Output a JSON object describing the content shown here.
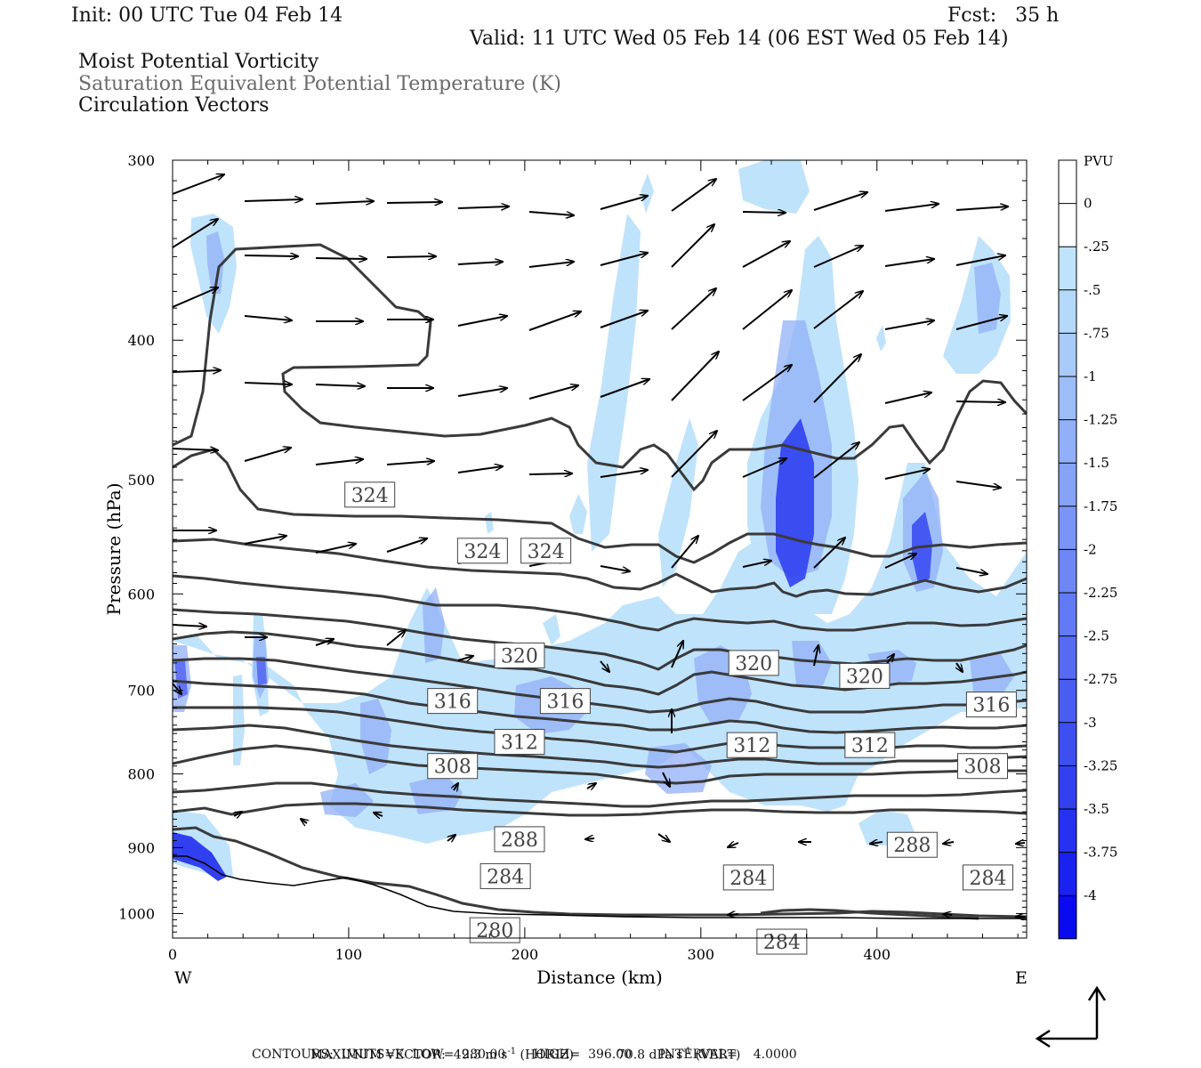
{
  "header": {
    "init": "Init: 00 UTC Tue 04 Feb 14",
    "fcst": "Fcst:   35 h",
    "valid": "Valid: 11 UTC Wed 05 Feb 14 (06 EST Wed 05 Feb 14)",
    "line1": "Moist Potential Vorticity",
    "line2": "Saturation Equivalent Potential Temperature (K)",
    "line3": "Circulation Vectors"
  },
  "footer": {
    "max_vector": "MAXIMUM VECTOR:  49.3 m s",
    "max_vector_h": "(HORIZ)",
    "max_vector_v": "70.8 dPa s",
    "max_vector_v2": "(VERT)",
    "sup": "-1",
    "contours": "CONTOURS:  UNITS=K  LOW=  280.00       HIGH=  396.00       INTERVAL=    4.0000"
  },
  "colors": {
    "contour": "#3a3a3a",
    "pv_light": "#bfe3fb",
    "pv_mid": "#7f9ff5",
    "pv_dark": "#1010f0"
  },
  "chart_data": {
    "type": "cross-section",
    "xlabel": "Distance (km)",
    "ylabel": "Pressure (hPa)",
    "x_end_left": "W",
    "x_end_right": "E",
    "xlim": [
      0,
      485
    ],
    "ylim": [
      300,
      1040
    ],
    "y_log_scale": true,
    "xticks": [
      0,
      100,
      200,
      300,
      400
    ],
    "yticks": [
      300,
      400,
      500,
      600,
      700,
      800,
      900,
      1000
    ],
    "colorbar": {
      "unit": "PVU",
      "levels": [
        "0",
        "-.25",
        "-.5",
        "-.75",
        "-1",
        "-1.25",
        "-1.5",
        "-1.75",
        "-2",
        "-2.25",
        "-2.5",
        "-2.75",
        "-3",
        "-3.25",
        "-3.5",
        "-3.75",
        "-4"
      ],
      "colors": [
        "#ffffff",
        "#ffffff",
        "#bfe3fb",
        "#b5d9fb",
        "#a9cbf9",
        "#9dbdf8",
        "#92b0f7",
        "#86a3f6",
        "#7a95f5",
        "#6f87f4",
        "#627af3",
        "#566bf2",
        "#4a5df1",
        "#3e4ff1",
        "#3240f0",
        "#2632f0",
        "#1a22f0",
        "#0a0af0"
      ]
    },
    "contour_labels": [
      {
        "value": "324",
        "x": 112,
        "p": 512
      },
      {
        "value": "324",
        "x": 176,
        "p": 560
      },
      {
        "value": "324",
        "x": 212,
        "p": 560
      },
      {
        "value": "320",
        "x": 197,
        "p": 662
      },
      {
        "value": "320",
        "x": 330,
        "p": 670
      },
      {
        "value": "320",
        "x": 393,
        "p": 684
      },
      {
        "value": "316",
        "x": 159,
        "p": 712
      },
      {
        "value": "316",
        "x": 223,
        "p": 712
      },
      {
        "value": "316",
        "x": 465,
        "p": 716
      },
      {
        "value": "312",
        "x": 197,
        "p": 760
      },
      {
        "value": "312",
        "x": 329,
        "p": 764
      },
      {
        "value": "312",
        "x": 396,
        "p": 764
      },
      {
        "value": "308",
        "x": 159,
        "p": 790
      },
      {
        "value": "308",
        "x": 460,
        "p": 790
      },
      {
        "value": "288",
        "x": 197,
        "p": 888
      },
      {
        "value": "288",
        "x": 420,
        "p": 896
      },
      {
        "value": "284",
        "x": 189,
        "p": 942
      },
      {
        "value": "284",
        "x": 327,
        "p": 944
      },
      {
        "value": "284",
        "x": 463,
        "p": 944
      },
      {
        "value": "280",
        "x": 183,
        "p": 1027
      },
      {
        "value": "284",
        "x": 346,
        "p": 1046
      }
    ]
  }
}
